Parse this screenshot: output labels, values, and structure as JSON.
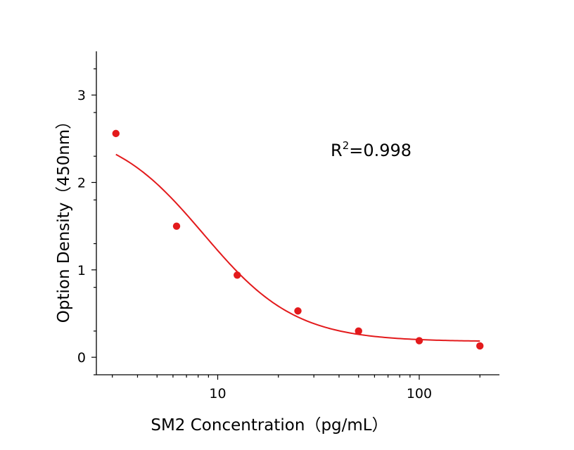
{
  "chart_data": {
    "type": "scatter",
    "xlabel": "SM2 Concentration（pg/mL）",
    "ylabel": "Option Density（450nm）",
    "x_scale": "log",
    "xlim": [
      2.5,
      250
    ],
    "ylim": [
      -0.2,
      3.5
    ],
    "x_ticks": [
      {
        "value": 10,
        "label": "10"
      },
      {
        "value": 100,
        "label": "100"
      }
    ],
    "y_ticks": [
      {
        "value": 0,
        "label": "0"
      },
      {
        "value": 1,
        "label": "1"
      },
      {
        "value": 2,
        "label": "2"
      },
      {
        "value": 3,
        "label": "3"
      }
    ],
    "points": {
      "x": [
        3.125,
        6.25,
        12.5,
        25,
        50,
        100,
        200
      ],
      "y": [
        2.56,
        1.5,
        0.94,
        0.53,
        0.3,
        0.19,
        0.13
      ]
    },
    "fit_curve": {
      "type": "4PL",
      "A": 2.64,
      "B": 1.9,
      "C": 8.5,
      "D": 0.18,
      "x_range": [
        3.125,
        200
      ]
    },
    "annotation": {
      "base": "R",
      "superscript": "2",
      "rest": "=0.998"
    },
    "colors": {
      "points": "#e31a1c",
      "curve": "#e31a1c",
      "axis": "#000000"
    },
    "grid": false,
    "legend": "none"
  }
}
